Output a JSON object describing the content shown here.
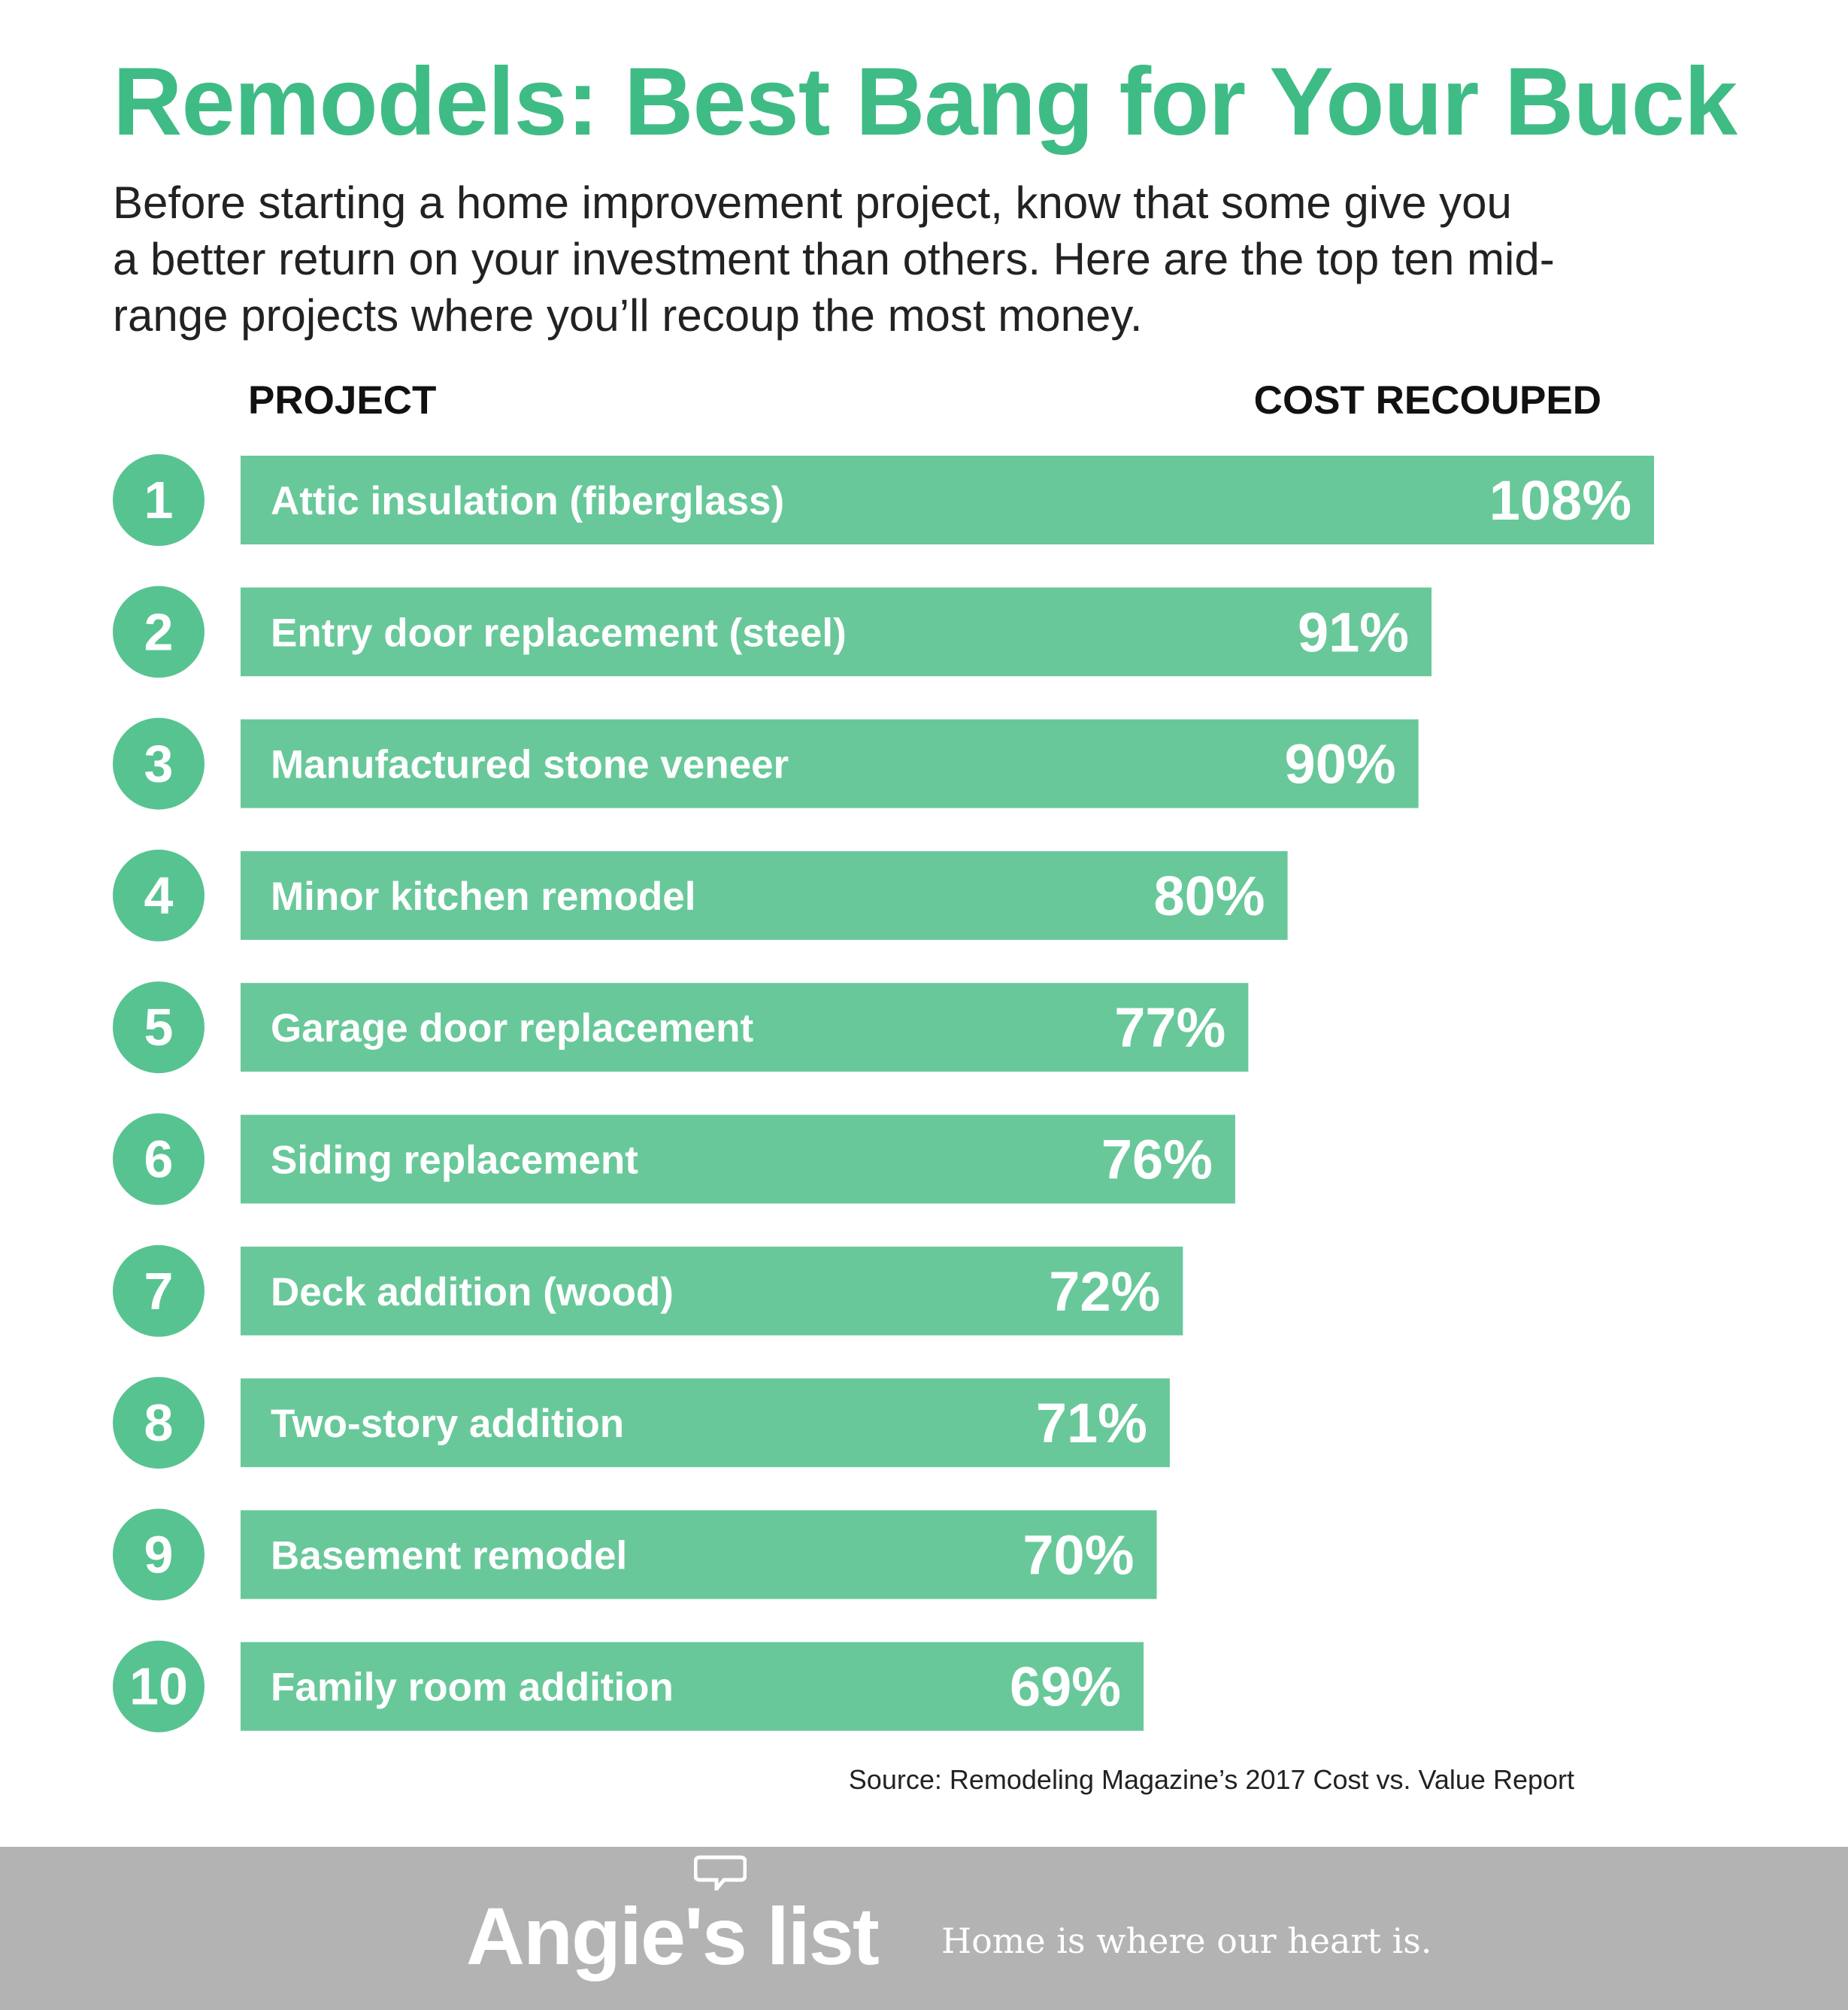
{
  "header": {
    "title": "Remodels: Best Bang for Your Buck",
    "intro_lines": [
      "Before starting a home improvement project, know that some give you",
      "a better return on your investment than others. Here are the top ten mid-",
      "range projects where you’ll recoup the most money."
    ]
  },
  "columns": {
    "project": "PROJECT",
    "cost": "COST RECOUPED"
  },
  "chart_data": {
    "type": "bar",
    "orientation": "horizontal",
    "ranks": [
      "1",
      "2",
      "3",
      "4",
      "5",
      "6",
      "7",
      "8",
      "9",
      "10"
    ],
    "categories": [
      "Attic insulation (fiberglass)",
      "Entry door replacement (steel)",
      "Manufactured stone veneer",
      "Minor kitchen remodel",
      "Garage door replacement",
      "Siding replacement",
      "Deck addition (wood)",
      "Two-story addition",
      "Basement remodel",
      "Family room addition"
    ],
    "values": [
      108,
      91,
      90,
      80,
      77,
      76,
      72,
      71,
      70,
      69
    ],
    "value_labels": [
      "108%",
      "91%",
      "90%",
      "80%",
      "77%",
      "76%",
      "72%",
      "71%",
      "70%",
      "69%"
    ],
    "title": "",
    "xlabel": "",
    "ylabel": "",
    "grid": false,
    "legend": "none"
  },
  "source": "Source: Remodeling Magazine’s 2017 Cost vs. Value Report",
  "footer": {
    "brand": "Angie's list",
    "tagline": "Home is where our heart is."
  },
  "colors": {
    "accent": "#3fbc85",
    "bar": "#68c89a",
    "circle": "#57c391",
    "footer_bg": "#b3b3b3",
    "text": "#222222"
  }
}
